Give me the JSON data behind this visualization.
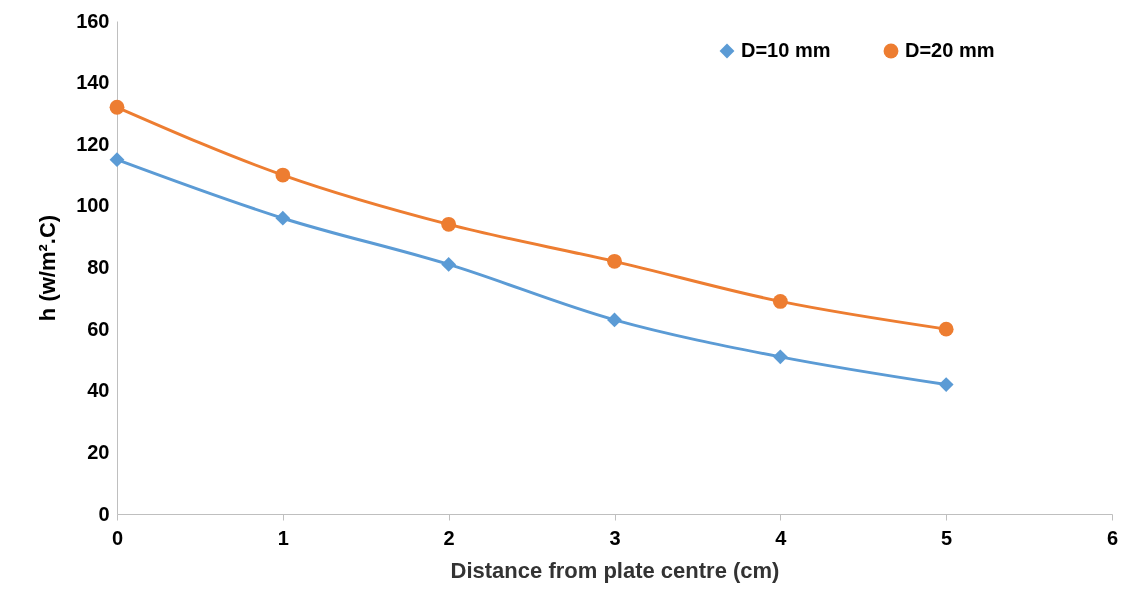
{
  "chart_data": {
    "type": "line",
    "xlabel": "Distance from plate centre (cm)",
    "ylabel": "h  (w/m².C)",
    "x": [
      0,
      1,
      2,
      3,
      4,
      5
    ],
    "series": [
      {
        "name": "D=10 mm",
        "color": "#5b9bd5",
        "marker": "diamond",
        "values": [
          115,
          96,
          81,
          63,
          51,
          42
        ]
      },
      {
        "name": "D=20 mm",
        "color": "#ed7d31",
        "marker": "circle",
        "values": [
          132,
          110,
          94,
          82,
          69,
          60
        ]
      }
    ],
    "xlim": [
      0,
      6
    ],
    "xticks": [
      0,
      1,
      2,
      3,
      4,
      5,
      6
    ],
    "ylim": [
      0,
      160
    ],
    "yticks": [
      0,
      20,
      40,
      60,
      80,
      100,
      120,
      140,
      160
    ],
    "grid": false,
    "legend": "top right",
    "line_style": "solid"
  }
}
